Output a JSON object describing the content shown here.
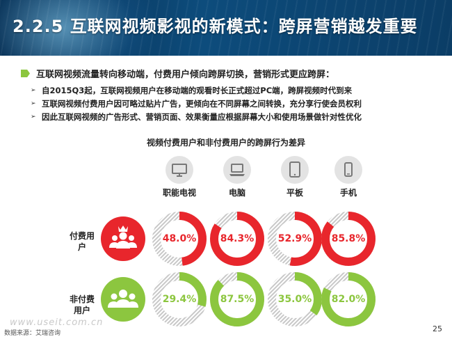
{
  "header": {
    "title": "2.2.5 互联网视频影视的新模式：跨屏营销越发重要"
  },
  "lead": "互联网视频流量转向移动端，付费用户倾向跨屏切换，营销形式更应跨屏：",
  "bullets": [
    "自2015Q3起，互联网视频用户在移动端的观看时长正式超过PC端，跨屏视频时代到来",
    "互联网视频付费用户因可略过贴片广告，更倾向在不同屏幕之间转换，充分享行使会员权利",
    "因此互联网视频的广告形式、营销页面、效果衡量应根据屏幕大小和使用场景做针对性优化"
  ],
  "chart_data": {
    "type": "donut-grid",
    "title": "视频付费用户和非付费用户的跨屏行为差异",
    "categories": [
      "职能电视",
      "电脑",
      "平板",
      "手机"
    ],
    "category_icons": [
      "tv-icon",
      "laptop-icon",
      "tablet-icon",
      "phone-icon"
    ],
    "series": [
      {
        "name": "付费用户",
        "values": [
          48.0,
          84.3,
          52.9,
          85.8
        ],
        "labels": [
          "48.0%",
          "84.3%",
          "52.9%",
          "85.8%"
        ],
        "color": "#e8262c",
        "icon": "crowned-user-group-icon"
      },
      {
        "name": "非付费用户",
        "values": [
          29.4,
          87.5,
          35.0,
          82.0
        ],
        "labels": [
          "29.4%",
          "87.5%",
          "35.0%",
          "82.0%"
        ],
        "color": "#8cc63f",
        "icon": "user-group-icon"
      }
    ],
    "units": "%"
  },
  "footer": {
    "source": "数据来源：艾瑞咨询",
    "watermark": "www.useit.com.cn",
    "page": "25"
  },
  "colors": {
    "banner": "#0d4c7c",
    "paid": "#e8262c",
    "unpaid": "#8cc63f",
    "remainder": "#c8c8c8",
    "bullet_marker": "#8cc63f"
  }
}
